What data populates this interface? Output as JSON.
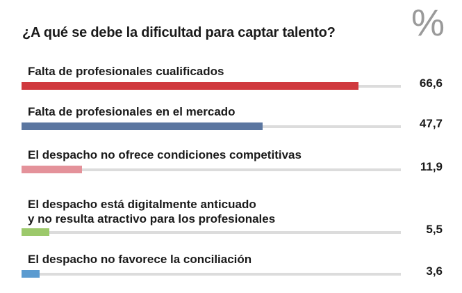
{
  "unit_label": "%",
  "chart_data": {
    "type": "bar",
    "orientation": "horizontal",
    "title": "¿A qué se debe la dificultad para captar talento?",
    "xlim": [
      0,
      75
    ],
    "categories": [
      "Falta de profesionales cualificados",
      "Falta de profesionales en el mercado",
      "El despacho no ofrece condiciones competitivas",
      "El despacho está digitalmente anticuado\ny no resulta atractivo para los profesionales",
      "El despacho no favorece la conciliación"
    ],
    "values": [
      66.6,
      47.7,
      11.9,
      5.5,
      3.6
    ],
    "value_labels": [
      "66,6",
      "47,7",
      "11,9",
      "5,5",
      "3,6"
    ],
    "colors": [
      "#d0393e",
      "#5b76a0",
      "#e4929a",
      "#9cc96b",
      "#5b9bd0"
    ],
    "track_color": "#dcdcdc",
    "grid": false,
    "legend": "none"
  }
}
